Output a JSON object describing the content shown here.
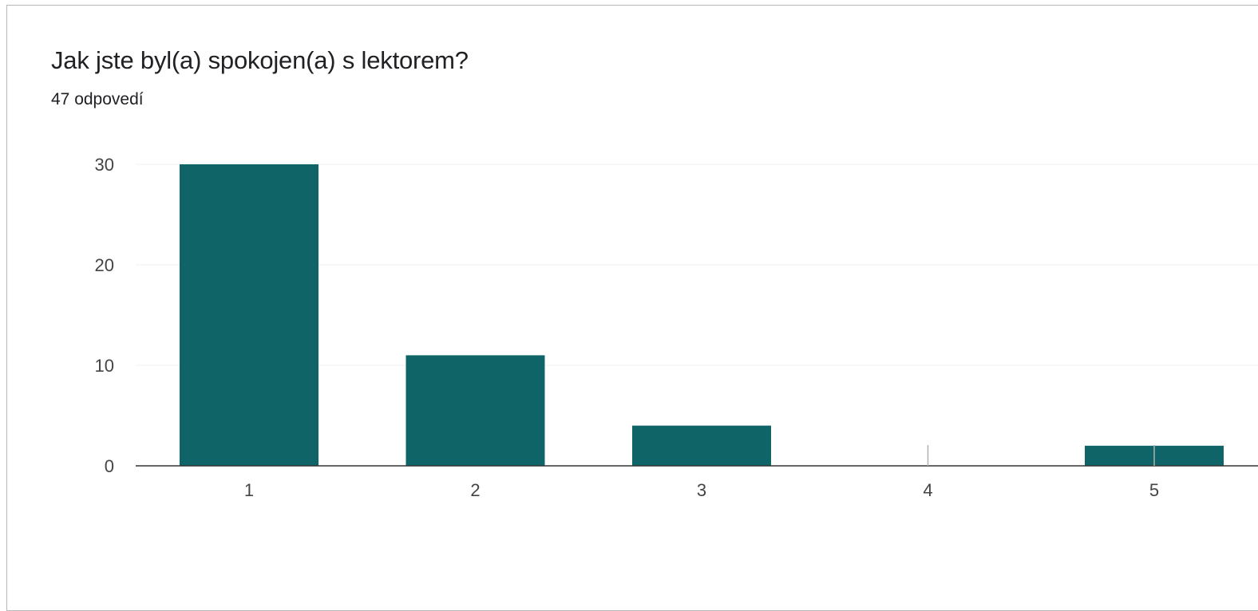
{
  "colors": {
    "bar": "#0f6468",
    "grid": "#f0f0f0",
    "baseline": "#333333",
    "text": "#202124"
  },
  "chart_data": {
    "type": "bar",
    "title": "Jak jste byl(a) spokojen(a) s lektorem?",
    "subtitle": "47 odpovedí",
    "categories": [
      "1",
      "2",
      "3",
      "4",
      "5"
    ],
    "values": [
      30,
      11,
      4,
      0,
      2
    ],
    "ylim": [
      0,
      30
    ],
    "yticks": [
      0,
      10,
      20,
      30
    ],
    "xlabel": "",
    "ylabel": "",
    "grid": true,
    "legend": "none"
  }
}
